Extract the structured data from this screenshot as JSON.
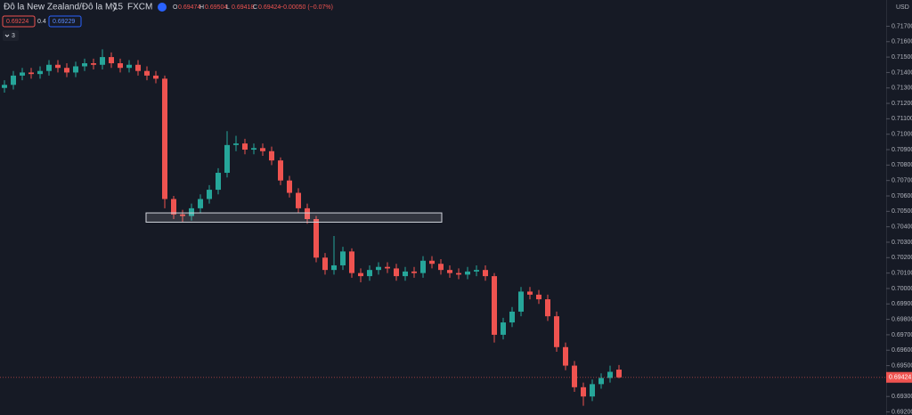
{
  "header": {
    "title": "Đô la New Zealand/Đô la Mỹ",
    "interval": "15",
    "source": "FXCM",
    "ohlc": [
      {
        "key": "O",
        "value": "0.69474"
      },
      {
        "key": "H",
        "value": "0.69504"
      },
      {
        "key": "L",
        "value": "0.69418"
      },
      {
        "key": "C",
        "value": "0.69424"
      }
    ],
    "change": "−0.00050 (−0.07%)",
    "sell": "0.69224",
    "spread": "0.4",
    "buy": "0.69229",
    "indicators": "3"
  },
  "chart_data": {
    "type": "candlestick",
    "currency": "USD",
    "up_color": "#26a69a",
    "down_color": "#ef5350",
    "open": [
      0.713,
      0.7132,
      0.7138,
      0.714,
      0.7139,
      0.7141,
      0.7145,
      0.7143,
      0.714,
      0.7144,
      0.7146,
      0.7145,
      0.715,
      0.7146,
      0.7143,
      0.7145,
      0.7141,
      0.7138,
      0.7136,
      0.7058,
      0.7048,
      0.7047,
      0.7052,
      0.7058,
      0.7064,
      0.7075,
      0.7093,
      0.7094,
      0.709,
      0.7091,
      0.7089,
      0.7083,
      0.707,
      0.7062,
      0.7052,
      0.7045,
      0.702,
      0.7012,
      0.7015,
      0.7024,
      0.701,
      0.7008,
      0.7012,
      0.7014,
      0.7013,
      0.7008,
      0.7011,
      0.701,
      0.7018,
      0.7016,
      0.7012,
      0.701,
      0.7009,
      0.7011,
      0.7012,
      0.7008,
      0.697,
      0.6978,
      0.6985,
      0.6998,
      0.6996,
      0.6993,
      0.6982,
      0.6962,
      0.695,
      0.6936,
      0.693,
      0.6938,
      0.6942,
      0.69474
    ],
    "high": [
      0.7135,
      0.7141,
      0.7143,
      0.7143,
      0.7144,
      0.7148,
      0.7148,
      0.7146,
      0.7147,
      0.7149,
      0.7149,
      0.7155,
      0.7153,
      0.7149,
      0.7148,
      0.7148,
      0.7144,
      0.7141,
      0.7138,
      0.706,
      0.7051,
      0.7055,
      0.7061,
      0.7067,
      0.7078,
      0.7102,
      0.7099,
      0.7097,
      0.7094,
      0.7094,
      0.7092,
      0.7085,
      0.7073,
      0.7065,
      0.7055,
      0.7047,
      0.7023,
      0.7034,
      0.7027,
      0.7026,
      0.7013,
      0.7015,
      0.7017,
      0.7017,
      0.7016,
      0.7014,
      0.7014,
      0.7021,
      0.7021,
      0.7019,
      0.7015,
      0.7013,
      0.7014,
      0.7015,
      0.7015,
      0.701,
      0.6981,
      0.6988,
      0.7001,
      0.7001,
      0.6999,
      0.6996,
      0.6985,
      0.6965,
      0.6953,
      0.6939,
      0.6941,
      0.6945,
      0.695,
      0.69504
    ],
    "low": [
      0.7127,
      0.7129,
      0.7135,
      0.7136,
      0.7136,
      0.7138,
      0.714,
      0.7137,
      0.7137,
      0.7141,
      0.7142,
      0.7142,
      0.7143,
      0.714,
      0.714,
      0.7138,
      0.7135,
      0.7133,
      0.7052,
      0.7045,
      0.7043,
      0.7044,
      0.7049,
      0.7055,
      0.7061,
      0.7072,
      0.7089,
      0.7087,
      0.7087,
      0.7086,
      0.708,
      0.7067,
      0.7059,
      0.7049,
      0.7042,
      0.7017,
      0.7009,
      0.7009,
      0.7012,
      0.7007,
      0.7004,
      0.7005,
      0.7009,
      0.701,
      0.7005,
      0.7005,
      0.7007,
      0.7007,
      0.7013,
      0.7009,
      0.7007,
      0.7006,
      0.7006,
      0.7008,
      0.7005,
      0.6965,
      0.6967,
      0.6975,
      0.6982,
      0.6993,
      0.699,
      0.6979,
      0.6959,
      0.6947,
      0.6933,
      0.6924,
      0.6927,
      0.6935,
      0.6939,
      0.69418
    ],
    "close": [
      0.7132,
      0.7138,
      0.714,
      0.7139,
      0.7141,
      0.7145,
      0.7143,
      0.714,
      0.7144,
      0.7146,
      0.7145,
      0.715,
      0.7146,
      0.7143,
      0.7145,
      0.7141,
      0.7138,
      0.7136,
      0.7058,
      0.7048,
      0.7047,
      0.7052,
      0.7058,
      0.7064,
      0.7075,
      0.7093,
      0.7094,
      0.709,
      0.7091,
      0.7089,
      0.7083,
      0.707,
      0.7062,
      0.7052,
      0.7045,
      0.702,
      0.7012,
      0.7015,
      0.7024,
      0.701,
      0.7008,
      0.7012,
      0.7014,
      0.7013,
      0.7008,
      0.7011,
      0.701,
      0.7018,
      0.7016,
      0.7012,
      0.701,
      0.7009,
      0.7011,
      0.7012,
      0.7008,
      0.697,
      0.6978,
      0.6985,
      0.6998,
      0.6996,
      0.6993,
      0.6982,
      0.6962,
      0.695,
      0.6936,
      0.693,
      0.6938,
      0.6942,
      0.6946,
      0.69424
    ],
    "last_price": 0.69424,
    "zone": [
      0.7049,
      0.7043
    ],
    "ylim": [
      0.6918,
      0.7187
    ],
    "yticks": [
      {
        "value": 0.692,
        "label": "0.69200"
      },
      {
        "value": 0.693,
        "label": "0.69300"
      },
      {
        "value": 0.695,
        "label": "0.69500"
      },
      {
        "value": 0.696,
        "label": "0.69600"
      },
      {
        "value": 0.697,
        "label": "0.69700"
      },
      {
        "value": 0.698,
        "label": "0.69800"
      },
      {
        "value": 0.699,
        "label": "0.69900"
      },
      {
        "value": 0.7,
        "label": "0.70000"
      },
      {
        "value": 0.701,
        "label": "0.70100"
      },
      {
        "value": 0.702,
        "label": "0.70200"
      },
      {
        "value": 0.703,
        "label": "0.70300"
      },
      {
        "value": 0.704,
        "label": "0.70400"
      },
      {
        "value": 0.705,
        "label": "0.70500"
      },
      {
        "value": 0.706,
        "label": "0.70600"
      },
      {
        "value": 0.707,
        "label": "0.70700"
      },
      {
        "value": 0.708,
        "label": "0.70800"
      },
      {
        "value": 0.709,
        "label": "0.70900"
      },
      {
        "value": 0.71,
        "label": "0.71000"
      },
      {
        "value": 0.711,
        "label": "0.71100"
      },
      {
        "value": 0.712,
        "label": "0.71200"
      },
      {
        "value": 0.713,
        "label": "0.71300"
      },
      {
        "value": 0.714,
        "label": "0.71400"
      },
      {
        "value": 0.715,
        "label": "0.71500"
      },
      {
        "value": 0.716,
        "label": "0.71600"
      },
      {
        "value": 0.717,
        "label": "0.71700"
      }
    ]
  }
}
